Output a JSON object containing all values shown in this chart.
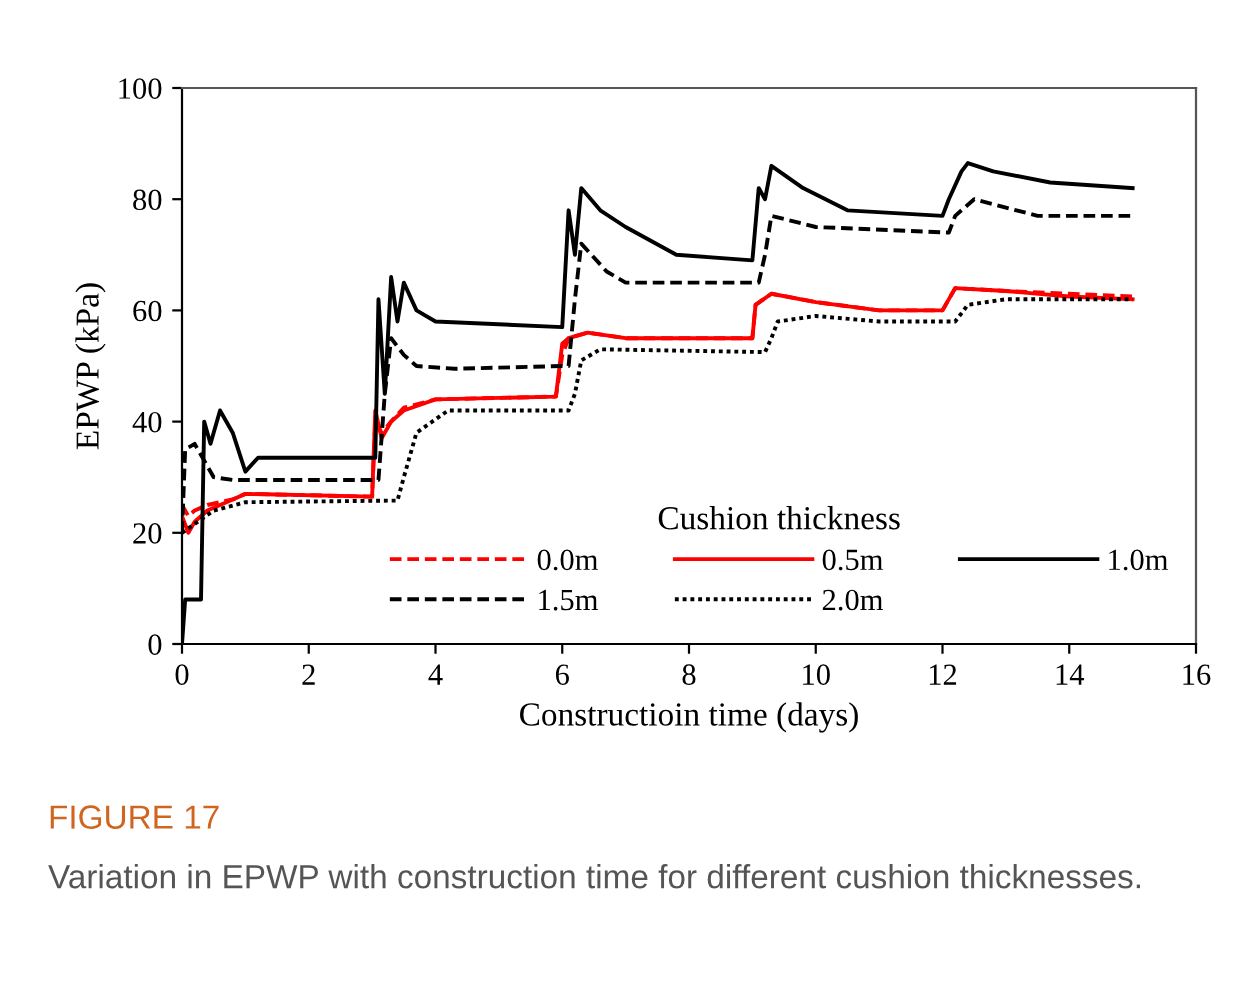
{
  "chart_data": {
    "type": "line",
    "xlabel": "Constructioin time (days)",
    "ylabel": "EPWP (kPa)",
    "legend_title": "Cushion thickness",
    "legend": "bottom right",
    "grid": false,
    "xlim": [
      0,
      16
    ],
    "xticks": [
      0,
      2,
      4,
      6,
      8,
      10,
      12,
      14,
      16
    ],
    "ylim": [
      0,
      100
    ],
    "yticks": [
      0,
      20,
      40,
      60,
      80,
      100
    ],
    "annotations": [
      "FIGURE 17",
      "Variation in EPWP with construction time for different cushion thicknesses."
    ],
    "series": [
      {
        "name": "0.0m",
        "color": "#ff0000",
        "line_style": "dashed",
        "x": [
          0,
          0.1,
          0.2,
          0.4,
          0.8,
          1.0,
          3.0,
          3.05,
          3.15,
          3.3,
          3.5,
          4.0,
          5.9,
          6.0,
          6.1,
          6.4,
          7.0,
          9.0,
          9.05,
          9.3,
          10.0,
          11.0,
          12.0,
          12.2,
          13.0,
          14.0,
          15.0
        ],
        "values": [
          25,
          23,
          24,
          25,
          26,
          27,
          26.5,
          40,
          38,
          40,
          42.5,
          44,
          44.5,
          52,
          55,
          56,
          55,
          55,
          61,
          63,
          61.5,
          60,
          60,
          64,
          63.5,
          63,
          62.5
        ]
      },
      {
        "name": "0.5m",
        "color": "#ff0000",
        "line_style": "solid",
        "x": [
          0,
          0.1,
          0.2,
          0.4,
          0.8,
          1.0,
          3.0,
          3.05,
          3.15,
          3.3,
          3.5,
          4.0,
          5.9,
          6.0,
          6.1,
          6.4,
          7.0,
          9.0,
          9.05,
          9.3,
          10.0,
          11.0,
          12.0,
          12.2,
          13.0,
          14.0,
          15.0
        ],
        "values": [
          23,
          20,
          22,
          24,
          26,
          27,
          26.5,
          42,
          37,
          40,
          42,
          44,
          44.5,
          54,
          55,
          56,
          55,
          55,
          61,
          63,
          61.5,
          60,
          60,
          64,
          63.5,
          62.5,
          62
        ]
      },
      {
        "name": "1.0m",
        "color": "#000000",
        "line_style": "solid",
        "x": [
          0,
          0.05,
          0.3,
          0.35,
          0.45,
          0.6,
          0.8,
          1.0,
          1.2,
          3.05,
          3.1,
          3.2,
          3.3,
          3.4,
          3.5,
          3.7,
          4.0,
          6.0,
          6.1,
          6.2,
          6.3,
          6.6,
          7.0,
          7.8,
          9.0,
          9.1,
          9.2,
          9.3,
          9.8,
          10.5,
          12.0,
          12.1,
          12.3,
          12.4,
          12.8,
          13.7,
          15.0
        ],
        "values": [
          0,
          8,
          8,
          40,
          36,
          42,
          38,
          31,
          33.5,
          33.5,
          62,
          45,
          66,
          58,
          65,
          60,
          58,
          57,
          78,
          70,
          82,
          78,
          75,
          70,
          69,
          82,
          80,
          86,
          82,
          78,
          77,
          80,
          85,
          86.5,
          85,
          83,
          82
        ]
      },
      {
        "name": "1.5m",
        "color": "#000000",
        "line_style": "dashed",
        "x": [
          0,
          0.05,
          0.2,
          0.5,
          0.8,
          3.1,
          3.2,
          3.3,
          3.5,
          3.7,
          4.3,
          6.0,
          6.1,
          6.2,
          6.3,
          6.7,
          7.0,
          9.1,
          9.2,
          9.3,
          10.0,
          12.1,
          12.2,
          12.5,
          13.5,
          15.0
        ],
        "values": [
          20,
          35,
          36,
          30,
          29.5,
          29.5,
          45,
          55,
          52,
          50,
          49.5,
          50,
          50,
          62,
          72,
          67,
          65,
          65,
          70,
          77,
          75,
          74,
          77,
          80,
          77,
          77
        ]
      },
      {
        "name": "2.0m",
        "color": "#000000",
        "line_style": "dotted",
        "x": [
          0,
          0.5,
          1.0,
          3.4,
          3.5,
          3.7,
          4.2,
          6.1,
          6.2,
          6.3,
          6.6,
          9.2,
          9.3,
          9.4,
          10.0,
          11.0,
          12.2,
          12.4,
          13.0,
          15.0
        ],
        "values": [
          20,
          24,
          25.5,
          25.8,
          30,
          38,
          42,
          42,
          45,
          51,
          53,
          52.5,
          55,
          58,
          59,
          58,
          58,
          61,
          62,
          62
        ]
      }
    ]
  }
}
